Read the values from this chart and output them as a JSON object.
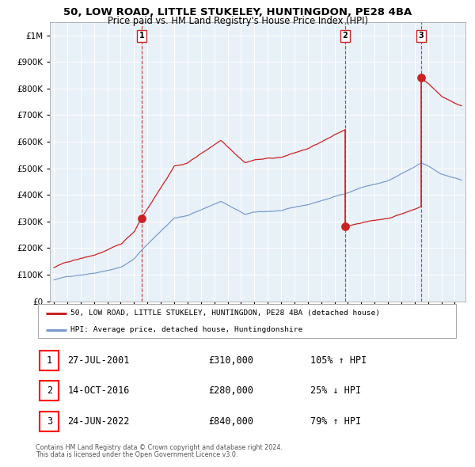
{
  "title": "50, LOW ROAD, LITTLE STUKELEY, HUNTINGDON, PE28 4BA",
  "subtitle": "Price paid vs. HM Land Registry's House Price Index (HPI)",
  "bg_color": "#e8f0f8",
  "red_color": "#cc2222",
  "blue_color": "#7799cc",
  "sale1_year": 2001.57,
  "sale1_price": 310000,
  "sale1_label": "27-JUL-2001",
  "sale1_pct": "105%",
  "sale1_dir": "↑",
  "sale2_year": 2016.79,
  "sale2_price": 280000,
  "sale2_label": "14-OCT-2016",
  "sale2_pct": "25%",
  "sale2_dir": "↓",
  "sale3_year": 2022.48,
  "sale3_price": 840000,
  "sale3_label": "24-JUN-2022",
  "sale3_pct": "79%",
  "sale3_dir": "↑",
  "legend1": "50, LOW ROAD, LITTLE STUKELEY, HUNTINGDON, PE28 4BA (detached house)",
  "legend2": "HPI: Average price, detached house, Huntingdonshire",
  "footer1": "Contains HM Land Registry data © Crown copyright and database right 2024.",
  "footer2": "This data is licensed under the Open Government Licence v3.0.",
  "y_max": 1050000
}
